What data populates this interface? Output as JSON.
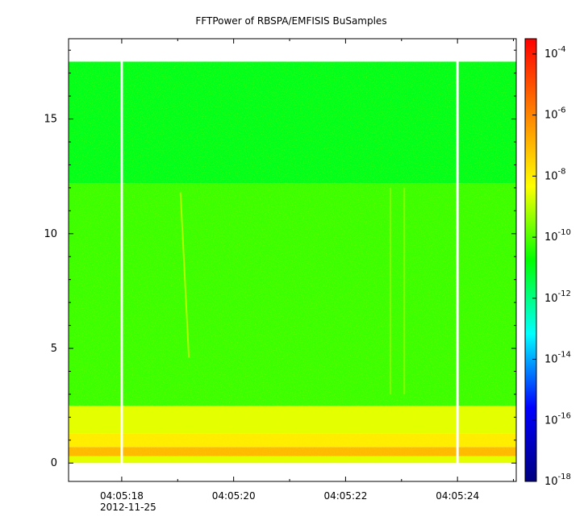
{
  "chart_data": {
    "type": "heatmap",
    "title": "FFTPower of RBSPA/EMFISIS  BuSamples",
    "xlabel": "",
    "ylabel": "",
    "x_range": [
      "04:05:17.05",
      "04:05:25.05"
    ],
    "y_range": [
      -0.8,
      18.5
    ],
    "x_tick_labels": [
      "04:05:18",
      "04:05:20",
      "04:05:22",
      "04:05:24"
    ],
    "x_date_label": "2012-11-25",
    "y_ticks": [
      0,
      5,
      10,
      15
    ],
    "data_time_range": [
      "04:05:17.05",
      "04:05:25.05"
    ],
    "data_freq_range": [
      0,
      17.5
    ],
    "gap_times": [
      "04:05:18",
      "04:05:24"
    ],
    "bands": [
      {
        "freq_range": [
          0.0,
          0.3
        ],
        "log_power": -8.6
      },
      {
        "freq_range": [
          0.3,
          0.7
        ],
        "log_power": -7.0
      },
      {
        "freq_range": [
          0.7,
          1.3
        ],
        "log_power": -8.0
      },
      {
        "freq_range": [
          1.3,
          2.5
        ],
        "log_power": -8.6
      },
      {
        "freq_range": [
          2.5,
          12.2
        ],
        "log_power": -10.2
      },
      {
        "freq_range": [
          12.2,
          17.5
        ],
        "log_power": -11.0
      }
    ],
    "streaks": [
      {
        "time_range": [
          "04:05:19.05",
          "04:05:19.20"
        ],
        "freq_range": [
          4.6,
          11.8
        ],
        "log_power": -8.8
      },
      {
        "time_range": [
          "04:05:22.80",
          "04:05:22.80"
        ],
        "freq_range": [
          3.0,
          12.0
        ],
        "log_power": -9.3
      },
      {
        "time_range": [
          "04:05:23.05",
          "04:05:23.05"
        ],
        "freq_range": [
          3.0,
          12.0
        ],
        "log_power": -9.3
      }
    ],
    "colorbar": {
      "scale": "log",
      "range_exponent": [
        -18,
        -3.5
      ],
      "tick_exponents": [
        -4,
        -6,
        -8,
        -10,
        -12,
        -14,
        -16,
        -18
      ],
      "tick_base": "10",
      "colors": [
        "#000080",
        "#0000ff",
        "#00ffff",
        "#00ff00",
        "#ffff00",
        "#ff8000",
        "#ff0000"
      ]
    }
  }
}
